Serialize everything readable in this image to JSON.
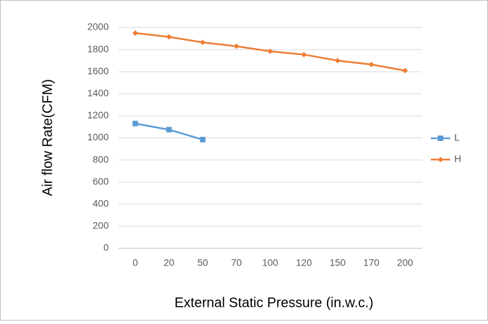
{
  "chart_data": {
    "type": "line",
    "x_label": "External Static Pressure (in.w.c.)",
    "y_label": "Air flow Rate(CFM)",
    "categories": [
      "0",
      "20",
      "50",
      "70",
      "100",
      "120",
      "150",
      "170",
      "200"
    ],
    "series": [
      {
        "name": "L",
        "color": "#5b9bd5",
        "marker": "square",
        "values": [
          1130,
          1075,
          985,
          null,
          null,
          null,
          null,
          null,
          null
        ]
      },
      {
        "name": "H",
        "color": "#ed7d31",
        "marker": "diamond",
        "values": [
          1950,
          1915,
          1865,
          1830,
          1785,
          1755,
          1700,
          1665,
          1610
        ]
      }
    ],
    "ylim": [
      0,
      2000
    ],
    "yticks": [
      0,
      200,
      400,
      600,
      800,
      1000,
      1200,
      1400,
      1600,
      1800,
      2000
    ],
    "grid": true,
    "legend": "right"
  }
}
